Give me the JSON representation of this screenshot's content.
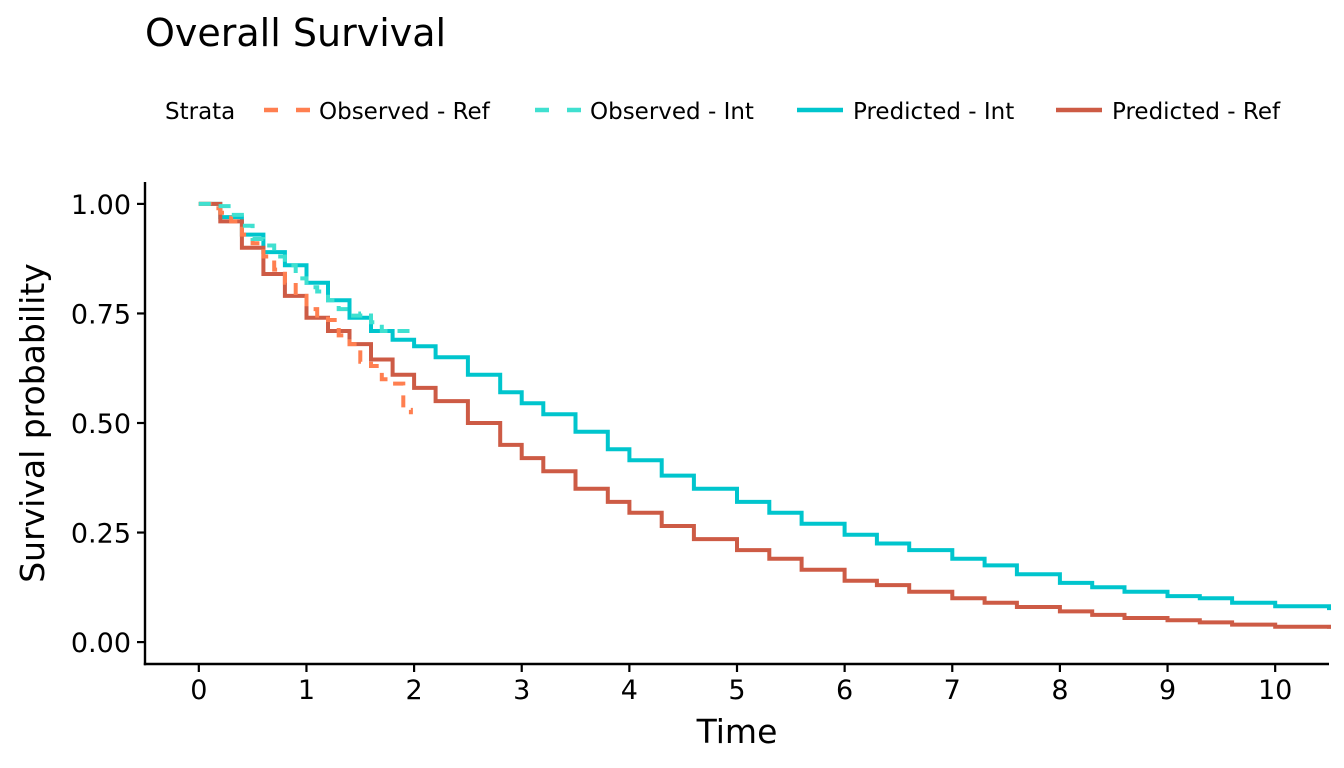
{
  "chart_data": {
    "type": "line",
    "title": "Overall Survival",
    "xlabel": "Time",
    "ylabel": "Survival probability",
    "xlim": [
      -0.5,
      10.5
    ],
    "ylim": [
      -0.05,
      1.05
    ],
    "x_ticks": [
      "0",
      "1",
      "2",
      "3",
      "4",
      "5",
      "6",
      "7",
      "8",
      "9",
      "10"
    ],
    "y_ticks": [
      "0.00",
      "0.25",
      "0.50",
      "0.75",
      "1.00"
    ],
    "grid": false,
    "legend": {
      "title": "Strata",
      "position": "top",
      "entries": [
        "Observed - Ref",
        "Observed - Int",
        "Predicted - Int",
        "Predicted - Ref"
      ]
    },
    "series": [
      {
        "name": "Observed - Ref",
        "style": "dashed",
        "color": "#FF7F50",
        "x": [
          0,
          0.1,
          0.2,
          0.3,
          0.4,
          0.5,
          0.6,
          0.7,
          0.8,
          0.9,
          1.0,
          1.1,
          1.2,
          1.3,
          1.4,
          1.5,
          1.6,
          1.7,
          1.8,
          1.9,
          1.97
        ],
        "y": [
          1.0,
          0.99,
          0.98,
          0.96,
          0.93,
          0.91,
          0.88,
          0.85,
          0.82,
          0.79,
          0.76,
          0.745,
          0.735,
          0.7,
          0.68,
          0.64,
          0.63,
          0.6,
          0.59,
          0.53,
          0.52
        ]
      },
      {
        "name": "Observed - Int",
        "style": "dashed",
        "color": "#40E0D0",
        "x": [
          0,
          0.15,
          0.3,
          0.4,
          0.5,
          0.6,
          0.7,
          0.8,
          0.9,
          1.0,
          1.1,
          1.2,
          1.3,
          1.4,
          1.5,
          1.6,
          1.7,
          1.8,
          1.97
        ],
        "y": [
          1.0,
          0.995,
          0.975,
          0.95,
          0.92,
          0.905,
          0.88,
          0.86,
          0.83,
          0.81,
          0.8,
          0.78,
          0.76,
          0.745,
          0.75,
          0.73,
          0.71,
          0.71,
          0.71
        ]
      },
      {
        "name": "Predicted - Int",
        "style": "solid",
        "color": "#00C5CD",
        "x": [
          0,
          0.2,
          0.4,
          0.6,
          0.8,
          1.0,
          1.2,
          1.4,
          1.6,
          1.8,
          2.0,
          2.2,
          2.5,
          2.8,
          3.0,
          3.2,
          3.5,
          3.8,
          4.0,
          4.3,
          4.6,
          5.0,
          5.3,
          5.6,
          6.0,
          6.3,
          6.6,
          7.0,
          7.3,
          7.6,
          8.0,
          8.3,
          8.6,
          9.0,
          9.3,
          9.6,
          10.0,
          10.5
        ],
        "y": [
          1.0,
          0.97,
          0.93,
          0.89,
          0.86,
          0.82,
          0.78,
          0.74,
          0.71,
          0.69,
          0.675,
          0.65,
          0.61,
          0.57,
          0.545,
          0.52,
          0.48,
          0.44,
          0.415,
          0.38,
          0.35,
          0.32,
          0.295,
          0.27,
          0.245,
          0.225,
          0.21,
          0.19,
          0.175,
          0.155,
          0.135,
          0.125,
          0.115,
          0.105,
          0.1,
          0.09,
          0.082,
          0.073
        ]
      },
      {
        "name": "Predicted - Ref",
        "style": "solid",
        "color": "#CD5B45",
        "x": [
          0,
          0.2,
          0.4,
          0.6,
          0.8,
          1.0,
          1.2,
          1.4,
          1.6,
          1.8,
          2.0,
          2.2,
          2.5,
          2.8,
          3.0,
          3.2,
          3.5,
          3.8,
          4.0,
          4.3,
          4.6,
          5.0,
          5.3,
          5.6,
          6.0,
          6.3,
          6.6,
          7.0,
          7.3,
          7.6,
          8.0,
          8.3,
          8.6,
          9.0,
          9.3,
          9.6,
          10.0,
          10.5
        ],
        "y": [
          1.0,
          0.96,
          0.9,
          0.84,
          0.79,
          0.74,
          0.71,
          0.68,
          0.645,
          0.61,
          0.58,
          0.55,
          0.5,
          0.45,
          0.42,
          0.39,
          0.35,
          0.32,
          0.295,
          0.265,
          0.235,
          0.21,
          0.19,
          0.165,
          0.14,
          0.13,
          0.115,
          0.1,
          0.09,
          0.08,
          0.07,
          0.062,
          0.055,
          0.05,
          0.045,
          0.04,
          0.035,
          0.03
        ]
      }
    ]
  }
}
